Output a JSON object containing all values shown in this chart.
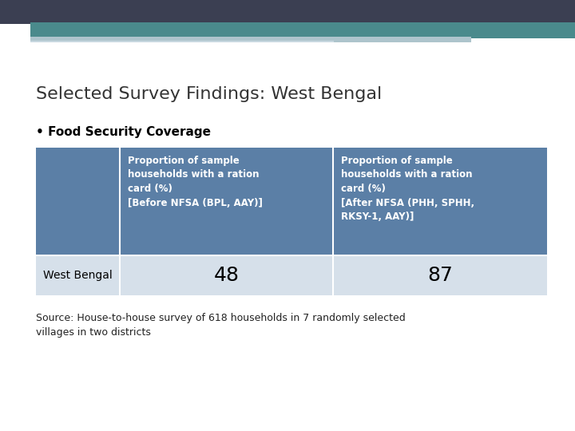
{
  "title": "Selected Survey Findings: West Bengal",
  "bullet": "• Food Security Coverage",
  "header_bg": "#5b7fa6",
  "header_text_color": "#ffffff",
  "row_bg": "#d6e0ea",
  "row_text_color": "#000000",
  "col_header1": "Proportion of sample\nhouseholds with a ration\ncard (%)\n[Before NFSA (BPL, AAY)]",
  "col_header2": "Proportion of sample\nhouseholds with a ration\ncard (%)\n[After NFSA (PHH, SPHH,\nRKSY-1, AAY)]",
  "row_label": "West Bengal",
  "val1": "48",
  "val2": "87",
  "source": "Source: House-to-house survey of 618 households in 7 randomly selected\nvillages in two districts",
  "top_dark_color": "#3b3f52",
  "top_teal_color": "#4a8a8c",
  "top_light_color": "#adc4cc",
  "bg_color": "#ffffff"
}
